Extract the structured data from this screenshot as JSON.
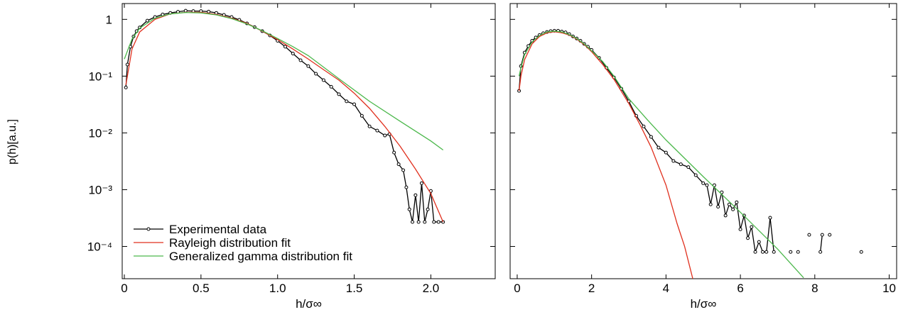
{
  "chart_data": [
    {
      "type": "line",
      "xlabel": "h/σ∞",
      "ylabel": "p(h)[a.u.]",
      "yscale": "log",
      "legend": "lower left",
      "xlim": [
        -0.014,
        2.42
      ],
      "ylim": [
        2.7e-05,
        1.9
      ],
      "xticks": [
        0,
        0.5,
        {
          "value": 1,
          "label": "1.0"
        },
        1.5,
        {
          "value": 2,
          "label": "2.0"
        }
      ],
      "yticks": [
        1,
        {
          "value": 0.1,
          "label": "10⁻¹"
        },
        {
          "value": 0.01,
          "label": "10⁻²"
        },
        {
          "value": 0.001,
          "label": "10⁻³"
        },
        {
          "value": 0.0001,
          "label": "10⁻⁴"
        }
      ],
      "series": [
        {
          "name": "Experimental data",
          "color": "#000000",
          "marker": "circle",
          "x": [
            0.01,
            0.02,
            0.04,
            0.06,
            0.08,
            0.1,
            0.15,
            0.2,
            0.25,
            0.3,
            0.35,
            0.4,
            0.45,
            0.5,
            0.55,
            0.6,
            0.65,
            0.7,
            0.75,
            0.8,
            0.85,
            0.9,
            0.95,
            1.0,
            1.05,
            1.1,
            1.15,
            1.2,
            1.25,
            1.3,
            1.35,
            1.4,
            1.45,
            1.5,
            1.55,
            1.6,
            1.65,
            1.7,
            1.73,
            1.76,
            1.79,
            1.82,
            1.84,
            1.86,
            1.88,
            1.9,
            1.92,
            1.94,
            1.96,
            1.98,
            2.0,
            2.02,
            2.05,
            2.08
          ],
          "values": [
            0.063,
            0.16,
            0.33,
            0.5,
            0.62,
            0.72,
            0.95,
            1.1,
            1.22,
            1.3,
            1.36,
            1.42,
            1.4,
            1.4,
            1.37,
            1.3,
            1.2,
            1.1,
            0.98,
            0.85,
            0.73,
            0.62,
            0.52,
            0.42,
            0.33,
            0.25,
            0.19,
            0.15,
            0.11,
            0.085,
            0.065,
            0.048,
            0.036,
            0.032,
            0.02,
            0.013,
            0.011,
            0.009,
            0.0095,
            0.0045,
            0.0028,
            0.0022,
            0.0011,
            0.00045,
            0.00027,
            0.0008,
            0.00027,
            0.0013,
            0.00027,
            0.00045,
            0.00095,
            0.00027,
            0.00027,
            0.00027
          ]
        },
        {
          "name": "Rayleigh distribution fit",
          "color": "#e0301e",
          "x": [
            0.01,
            0.05,
            0.1,
            0.2,
            0.3,
            0.4,
            0.5,
            0.6,
            0.7,
            0.8,
            0.9,
            1.0,
            1.1,
            1.2,
            1.3,
            1.4,
            1.5,
            1.6,
            1.7,
            1.8,
            1.9,
            2.0,
            2.08
          ],
          "values": [
            0.07,
            0.3,
            0.6,
            1.0,
            1.25,
            1.33,
            1.33,
            1.22,
            1.05,
            0.85,
            0.62,
            0.44,
            0.3,
            0.2,
            0.13,
            0.085,
            0.05,
            0.027,
            0.013,
            0.0058,
            0.0023,
            0.00085,
            0.00027
          ]
        },
        {
          "name": "Generalized gamma distribution fit",
          "color": "#4cb84c",
          "x": [
            0.0,
            0.05,
            0.1,
            0.2,
            0.3,
            0.4,
            0.5,
            0.6,
            0.7,
            0.8,
            0.9,
            1.0,
            1.1,
            1.2,
            1.4,
            1.6,
            1.8,
            2.0,
            2.08
          ],
          "values": [
            0.2,
            0.45,
            0.7,
            1.05,
            1.25,
            1.32,
            1.3,
            1.2,
            1.03,
            0.83,
            0.63,
            0.46,
            0.33,
            0.23,
            0.09,
            0.036,
            0.016,
            0.0072,
            0.005
          ]
        }
      ]
    },
    {
      "type": "line",
      "xlabel": "h/σ∞",
      "yscale": "log",
      "xlim": [
        -0.19,
        10.2
      ],
      "ylim": [
        2.7e-05,
        1.9
      ],
      "xticks": [
        0,
        2,
        4,
        6,
        8,
        10
      ],
      "series": [
        {
          "color": "#000000",
          "marker": "circle",
          "x": [
            0.05,
            0.1,
            0.2,
            0.3,
            0.4,
            0.5,
            0.6,
            0.7,
            0.8,
            0.9,
            1.0,
            1.1,
            1.2,
            1.3,
            1.4,
            1.5,
            1.6,
            1.7,
            1.8,
            1.9,
            2.0,
            2.2,
            2.4,
            2.6,
            2.8,
            3.0,
            3.2,
            3.4,
            3.6,
            3.8,
            4.0,
            4.2,
            4.4,
            4.6,
            4.8,
            5.0,
            5.1,
            5.2,
            5.3,
            5.4,
            5.5,
            5.6,
            5.7,
            5.8,
            5.9,
            6.0,
            6.1,
            6.2,
            6.3,
            6.4,
            6.5,
            6.6,
            6.7,
            6.8,
            6.9,
            7.1,
            7.35,
            7.45,
            7.55,
            7.7,
            7.85,
            8.0,
            8.15,
            8.2,
            8.3,
            8.4,
            9.0,
            9.25
          ],
          "values": [
            0.055,
            0.15,
            0.26,
            0.34,
            0.42,
            0.48,
            0.53,
            0.57,
            0.6,
            0.62,
            0.63,
            0.63,
            0.61,
            0.59,
            0.55,
            0.5,
            0.46,
            0.42,
            0.37,
            0.33,
            0.29,
            0.21,
            0.14,
            0.095,
            0.06,
            0.036,
            0.02,
            0.013,
            0.0085,
            0.0055,
            0.0045,
            0.0032,
            0.0028,
            0.0025,
            0.0018,
            0.0013,
            0.0012,
            0.00055,
            0.0012,
            0.0005,
            0.0009,
            0.00035,
            0.00055,
            0.00045,
            0.0006,
            0.0002,
            0.00035,
            0.00014,
            0.00022,
            8e-05,
            0.00012,
            8e-05,
            8e-05,
            0.00032,
            8e-05,
            null,
            8e-05,
            null,
            8e-05,
            null,
            0.00016,
            null,
            8e-05,
            0.00016,
            null,
            0.00016,
            null,
            8e-05
          ]
        },
        {
          "color": "#e0301e",
          "x": [
            0.05,
            0.1,
            0.2,
            0.4,
            0.6,
            0.8,
            1.0,
            1.2,
            1.4,
            1.6,
            1.8,
            2.0,
            2.3,
            2.6,
            3.0,
            3.3,
            3.6,
            4.0,
            4.3,
            4.5,
            4.72
          ],
          "values": [
            0.055,
            0.1,
            0.196,
            0.37,
            0.5,
            0.58,
            0.607,
            0.58,
            0.53,
            0.45,
            0.36,
            0.27,
            0.16,
            0.088,
            0.033,
            0.014,
            0.0056,
            0.0012,
            0.00025,
            0.0001,
            2.7e-05
          ]
        },
        {
          "color": "#4cb84c",
          "x": [
            0.05,
            0.1,
            0.2,
            0.4,
            0.6,
            0.8,
            1.0,
            1.2,
            1.4,
            1.6,
            1.8,
            2.0,
            2.3,
            2.6,
            3.0,
            3.5,
            4.0,
            5.0,
            6.0,
            7.0,
            7.7
          ],
          "values": [
            0.1,
            0.14,
            0.24,
            0.4,
            0.52,
            0.6,
            0.62,
            0.6,
            0.54,
            0.46,
            0.37,
            0.28,
            0.18,
            0.1,
            0.04,
            0.017,
            0.0075,
            0.0017,
            0.0004,
            9e-05,
            2.8e-05
          ]
        }
      ]
    }
  ]
}
